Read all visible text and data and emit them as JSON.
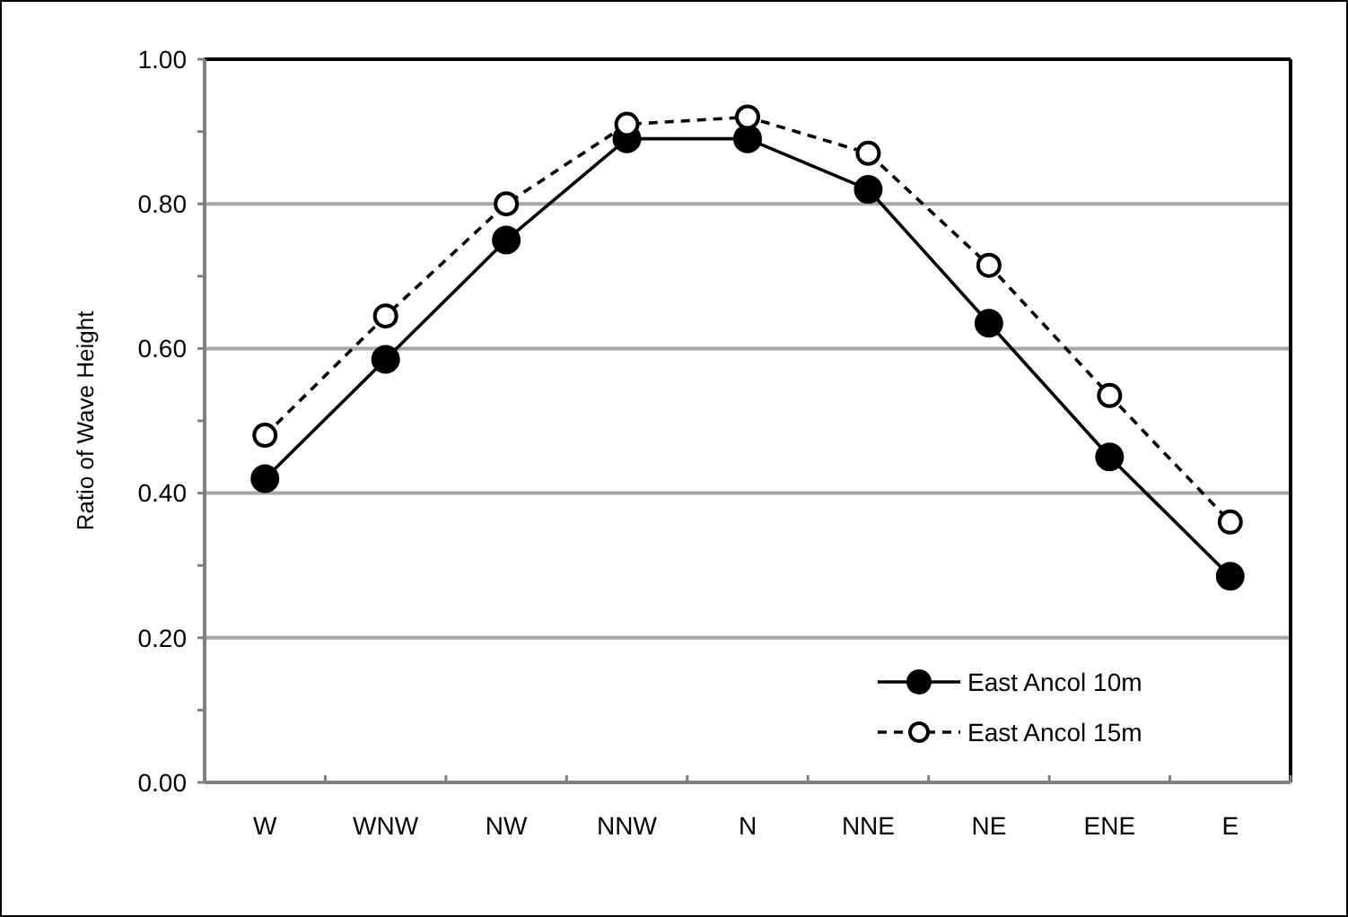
{
  "chart_data": {
    "type": "line",
    "ylabel": "Ratio of Wave Height",
    "categories": [
      "W",
      "WNW",
      "NW",
      "NNW",
      "N",
      "NNE",
      "NE",
      "ENE",
      "E"
    ],
    "series": [
      {
        "name": "East Ancol 10m",
        "color": "#000000",
        "marker": "circle",
        "line_style": "solid",
        "values": [
          0.42,
          0.585,
          0.75,
          0.89,
          0.89,
          0.82,
          0.635,
          0.45,
          0.285
        ]
      },
      {
        "name": "East Ancol 15m",
        "color": "#000000",
        "marker": "circle",
        "line_style": "dashed",
        "values": [
          0.48,
          0.645,
          0.8,
          0.91,
          0.92,
          0.87,
          0.715,
          0.535,
          0.36
        ]
      }
    ],
    "ylim": [
      0,
      1
    ],
    "yticks": [
      {
        "value": 0,
        "label": "0.00"
      },
      {
        "value": 0.1,
        "label": null
      },
      {
        "value": 0.2,
        "label": "0.20"
      },
      {
        "value": 0.3,
        "label": null
      },
      {
        "value": 0.4,
        "label": "0.40"
      },
      {
        "value": 0.5,
        "label": null
      },
      {
        "value": 0.6,
        "label": "0.60"
      },
      {
        "value": 0.7,
        "label": null
      },
      {
        "value": 0.8,
        "label": "0.80"
      },
      {
        "value": 0.9,
        "label": null
      },
      {
        "value": 1,
        "label": "1.00"
      }
    ],
    "grid": "y",
    "legend": "bottom right"
  }
}
